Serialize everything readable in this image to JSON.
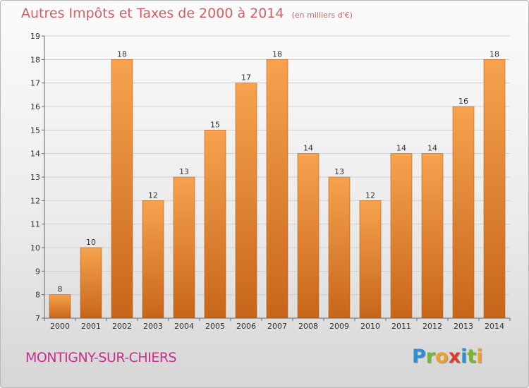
{
  "header": {
    "title": "Autres Impôts et Taxes de 2000 à 2014",
    "subtitle": "(en milliers d'€)"
  },
  "footer": {
    "commune": "MONTIGNY-SUR-CHIERS",
    "logo_text": "Proxiti",
    "logo_letters": [
      {
        "ch": "P",
        "color": "#2e8fd6"
      },
      {
        "ch": "r",
        "color": "#79b62e"
      },
      {
        "ch": "o",
        "color": "#f0a028"
      },
      {
        "ch": "x",
        "color": "#d93d2b"
      },
      {
        "ch": "i",
        "color": "#2e8fd6"
      },
      {
        "ch": "t",
        "color": "#79b62e"
      },
      {
        "ch": "i",
        "color": "#f0a028"
      }
    ]
  },
  "colors": {
    "bar_light": "#f7a24e",
    "bar_dark": "#c7661a",
    "title": "#d35f63",
    "commune": "#c8308c",
    "grid": "#d0d0d0"
  },
  "chart_data": {
    "type": "bar",
    "title": "Autres Impôts et Taxes de 2000 à 2014",
    "subtitle": "(en milliers d'€)",
    "categories": [
      "2000",
      "2001",
      "2002",
      "2003",
      "2004",
      "2005",
      "2006",
      "2007",
      "2008",
      "2009",
      "2010",
      "2011",
      "2012",
      "2013",
      "2014"
    ],
    "values": [
      8,
      10,
      18,
      12,
      13,
      15,
      17,
      18,
      14,
      13,
      12,
      14,
      14,
      16,
      18
    ],
    "ylim": [
      7,
      19
    ],
    "yticks": [
      7,
      8,
      9,
      10,
      11,
      12,
      13,
      14,
      15,
      16,
      17,
      18,
      19
    ],
    "grid": true,
    "legend": "none"
  }
}
